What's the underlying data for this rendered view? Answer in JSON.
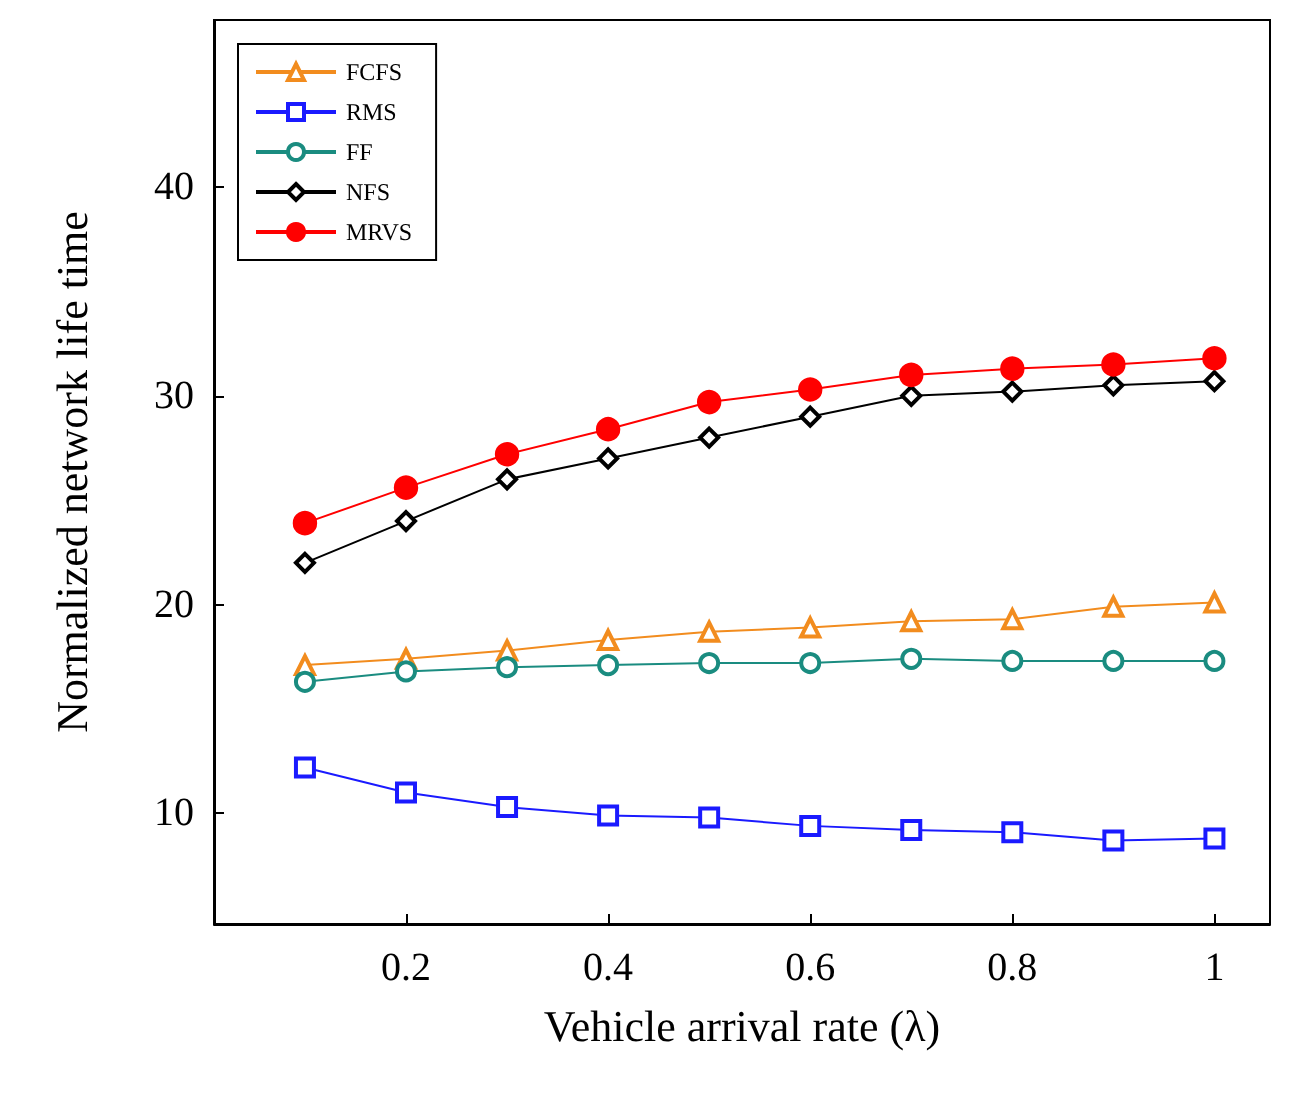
{
  "chart_data": {
    "type": "line",
    "xlabel": "Vehicle arrival rate (λ)",
    "ylabel": "Normalized network life time",
    "x": [
      0.1,
      0.2,
      0.3,
      0.4,
      0.5,
      0.6,
      0.7,
      0.8,
      0.9,
      1
    ],
    "xlim": [
      0.01,
      1.055
    ],
    "xticks": [
      0.2,
      0.4,
      0.6,
      0.8,
      1
    ],
    "ylim": [
      4.7,
      48
    ],
    "yticks": [
      10,
      20,
      30,
      40
    ],
    "grid": false,
    "legend": "top left",
    "line_style": "solid",
    "series": [
      {
        "name": "FCFS",
        "color": "#f28c1e",
        "marker": "triangle",
        "values": [
          17.1,
          17.4,
          17.8,
          18.3,
          18.7,
          18.9,
          19.2,
          19.3,
          19.9,
          20.1
        ]
      },
      {
        "name": "RMS",
        "color": "#1a1aff",
        "marker": "square",
        "values": [
          12.2,
          11.0,
          10.3,
          9.9,
          9.8,
          9.4,
          9.2,
          9.1,
          8.7,
          8.8
        ]
      },
      {
        "name": "FF",
        "color": "#1a8c80",
        "marker": "circle",
        "values": [
          16.3,
          16.8,
          17.0,
          17.1,
          17.2,
          17.2,
          17.4,
          17.3,
          17.3,
          17.3
        ]
      },
      {
        "name": "NFS",
        "color": "#000000",
        "marker": "diamond",
        "values": [
          22.0,
          24.0,
          26.0,
          27.0,
          28.0,
          29.0,
          30.0,
          30.2,
          30.5,
          30.7
        ]
      },
      {
        "name": "MRVS",
        "color": "#ff0000",
        "marker": "circle",
        "values": [
          23.9,
          25.6,
          27.2,
          28.4,
          29.7,
          30.3,
          31.0,
          31.3,
          31.5,
          31.8
        ]
      }
    ]
  }
}
